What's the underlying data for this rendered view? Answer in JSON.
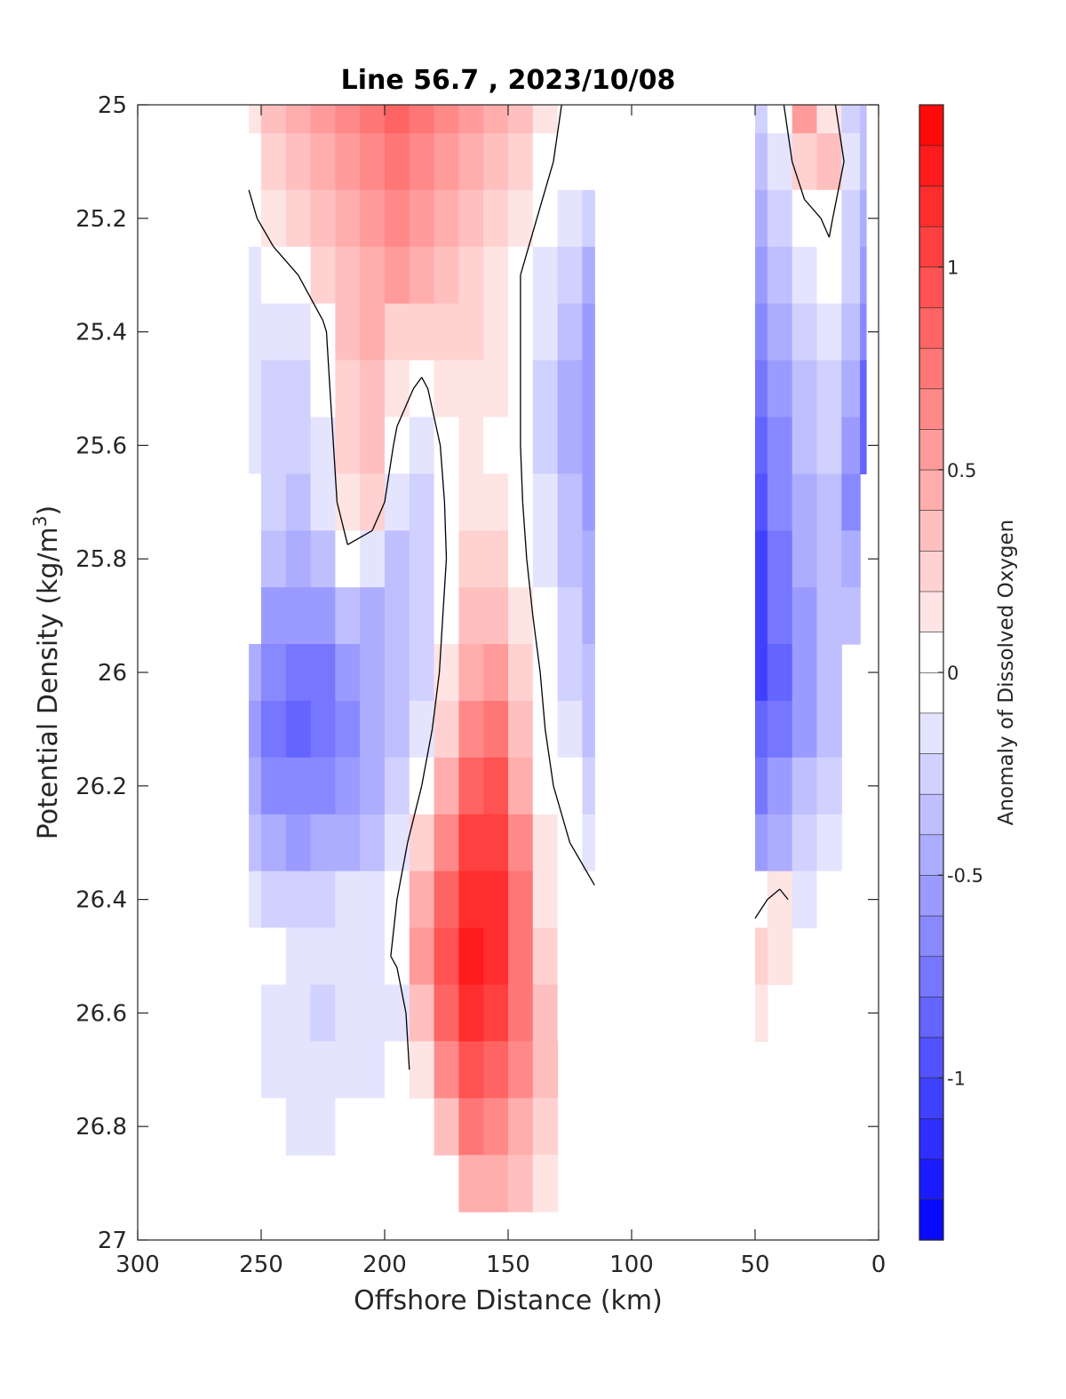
{
  "chart_data": {
    "type": "heatmap",
    "title": "Line 56.7 , 2023/10/08",
    "xlabel": "Offshore Distance (km)",
    "ylabel": "Potential Density (kg/m³)",
    "ylabel_parts": {
      "main": "Potential Density (kg/m",
      "superscript": "3",
      "suffix": ")"
    },
    "colorbar_label": "Anomaly of Dissolved Oxygen",
    "xlim": [
      300,
      0
    ],
    "ylim": [
      25,
      27
    ],
    "x_reversed": true,
    "y_reversed": true,
    "x_ticks": [
      300,
      250,
      200,
      150,
      100,
      50,
      0
    ],
    "x_tick_labels": [
      "300",
      "250",
      "200",
      "150",
      "100",
      "50",
      "0"
    ],
    "y_ticks": [
      25,
      25.2,
      25.4,
      25.6,
      25.8,
      26,
      26.2,
      26.4,
      26.6,
      26.8,
      27
    ],
    "y_tick_labels": [
      "25",
      "25.2",
      "25.4",
      "25.6",
      "25.8",
      "26",
      "26.2",
      "26.4",
      "26.6",
      "26.8",
      "27"
    ],
    "colorbar": {
      "range": [
        -1.4,
        1.4
      ],
      "step": 0.1,
      "ticks": [
        1,
        0.5,
        0,
        -0.5,
        -1
      ],
      "tick_labels": [
        "1",
        "0.5",
        "0",
        "-0.5",
        "-1"
      ],
      "positive_color": "#ff0000",
      "negative_color": "#0000ff",
      "neutral_color": "#ffffff"
    },
    "contour_levels": [
      0
    ],
    "field": {
      "description": "Dissolved oxygen anomaly sampled on offshore distance (km) vs potential density grid",
      "x": [
        255,
        245,
        235,
        225,
        215,
        205,
        195,
        185,
        175,
        165,
        155,
        145,
        135,
        125,
        115,
        50,
        40,
        30,
        20,
        10,
        5
      ],
      "y": [
        25.0,
        25.1,
        25.2,
        25.3,
        25.4,
        25.5,
        25.6,
        25.7,
        25.8,
        25.9,
        26.0,
        26.1,
        26.2,
        26.3,
        26.4,
        26.5,
        26.6,
        26.7,
        26.8,
        26.9
      ],
      "values": [
        [
          0.15,
          0.3,
          0.4,
          0.5,
          0.6,
          0.7,
          0.8,
          0.7,
          0.6,
          0.5,
          0.4,
          0.3,
          0.1,
          -0.05,
          null,
          -0.3,
          -0.1,
          0.5,
          0.1,
          -0.3,
          -0.4
        ],
        [
          0.05,
          0.2,
          0.3,
          0.45,
          0.55,
          0.65,
          0.7,
          0.65,
          0.55,
          0.45,
          0.35,
          0.2,
          0.05,
          -0.1,
          -0.1,
          -0.4,
          -0.2,
          0.2,
          0.3,
          -0.2,
          -0.4
        ],
        [
          -0.05,
          0.1,
          0.2,
          0.35,
          0.45,
          0.55,
          0.6,
          0.55,
          0.45,
          0.35,
          0.25,
          0.1,
          -0.05,
          -0.2,
          -0.3,
          -0.5,
          -0.3,
          -0.1,
          0.05,
          -0.3,
          -0.5
        ],
        [
          -0.15,
          -0.1,
          0.0,
          0.2,
          0.35,
          0.45,
          0.5,
          0.45,
          0.35,
          0.25,
          0.15,
          0.0,
          -0.15,
          -0.3,
          -0.45,
          -0.6,
          -0.4,
          -0.2,
          -0.1,
          -0.3,
          -0.6
        ],
        [
          -0.2,
          -0.2,
          -0.15,
          -0.05,
          0.3,
          0.4,
          0.25,
          0.2,
          0.25,
          0.2,
          0.1,
          0.0,
          -0.2,
          -0.4,
          -0.55,
          -0.7,
          -0.5,
          -0.3,
          -0.2,
          -0.4,
          -0.7
        ],
        [
          -0.2,
          -0.25,
          -0.3,
          -0.1,
          0.25,
          0.35,
          0.1,
          -0.05,
          0.15,
          0.15,
          0.1,
          0.0,
          -0.25,
          -0.45,
          -0.6,
          -0.8,
          -0.6,
          -0.35,
          -0.25,
          -0.5,
          -0.9
        ],
        [
          -0.15,
          -0.25,
          -0.3,
          -0.15,
          0.2,
          0.3,
          -0.05,
          -0.15,
          0.05,
          0.1,
          0.08,
          0.0,
          -0.25,
          -0.45,
          -0.6,
          -0.9,
          -0.65,
          -0.4,
          -0.3,
          -0.6,
          -0.9
        ],
        [
          -0.05,
          -0.3,
          -0.35,
          -0.2,
          0.15,
          0.2,
          -0.2,
          -0.25,
          0.02,
          0.12,
          0.1,
          0.02,
          -0.2,
          -0.4,
          -0.55,
          -1.0,
          -0.7,
          -0.45,
          -0.35,
          -0.7,
          null
        ],
        [
          -0.05,
          -0.4,
          -0.45,
          -0.35,
          -0.05,
          -0.2,
          -0.35,
          -0.3,
          0.0,
          0.2,
          0.2,
          0.05,
          -0.15,
          -0.35,
          -0.5,
          -1.05,
          -0.75,
          -0.5,
          -0.4,
          -0.5,
          null
        ],
        [
          -0.1,
          -0.55,
          -0.6,
          -0.55,
          -0.4,
          -0.45,
          -0.4,
          -0.3,
          0.05,
          0.3,
          0.35,
          0.1,
          -0.1,
          -0.3,
          -0.45,
          -1.1,
          -0.8,
          -0.55,
          -0.4,
          -0.4,
          null
        ],
        [
          -0.5,
          -0.7,
          -0.8,
          -0.75,
          -0.6,
          -0.5,
          -0.4,
          -0.25,
          0.1,
          0.45,
          0.5,
          0.2,
          -0.05,
          -0.25,
          -0.4,
          -1.05,
          -0.85,
          -0.6,
          -0.4,
          null,
          null
        ],
        [
          -0.55,
          -0.75,
          -0.85,
          -0.8,
          -0.65,
          -0.5,
          -0.35,
          -0.15,
          0.2,
          0.6,
          0.7,
          0.3,
          0.0,
          -0.2,
          -0.35,
          -0.9,
          -0.8,
          -0.55,
          -0.35,
          null,
          null
        ],
        [
          -0.45,
          -0.65,
          -0.7,
          -0.65,
          -0.55,
          -0.45,
          -0.25,
          0.0,
          0.4,
          0.8,
          0.9,
          0.45,
          0.05,
          -0.1,
          -0.25,
          -0.75,
          -0.6,
          -0.4,
          -0.25,
          null,
          null
        ],
        [
          -0.35,
          -0.5,
          -0.55,
          -0.5,
          -0.45,
          -0.35,
          -0.15,
          0.2,
          0.65,
          1.0,
          1.0,
          0.6,
          0.1,
          0.0,
          -0.15,
          -0.55,
          -0.45,
          -0.3,
          -0.2,
          null,
          null
        ],
        [
          -0.2,
          -0.25,
          -0.3,
          -0.25,
          -0.2,
          -0.15,
          0.0,
          0.4,
          0.8,
          1.15,
          1.1,
          0.7,
          0.15,
          0.05,
          0.05,
          -0.1,
          0.1,
          -0.2,
          -0.1,
          null,
          null
        ],
        [
          -0.1,
          -0.1,
          -0.15,
          -0.2,
          -0.2,
          -0.15,
          0.05,
          0.5,
          0.9,
          1.2,
          1.15,
          0.75,
          0.2,
          0.0,
          null,
          0.2,
          0.15,
          null,
          null,
          null,
          null
        ],
        [
          -0.1,
          -0.15,
          -0.2,
          -0.3,
          -0.2,
          -0.2,
          -0.2,
          0.35,
          0.85,
          1.1,
          1.05,
          0.7,
          0.3,
          0.05,
          null,
          0.1,
          null,
          null,
          null,
          null,
          null
        ],
        [
          -0.05,
          -0.15,
          -0.2,
          -0.2,
          -0.15,
          -0.15,
          -0.1,
          0.1,
          0.6,
          0.9,
          0.85,
          0.6,
          0.3,
          null,
          null,
          null,
          null,
          null,
          null,
          null,
          null
        ],
        [
          -0.05,
          -0.1,
          -0.15,
          -0.15,
          -0.1,
          -0.1,
          -0.05,
          null,
          0.35,
          0.7,
          0.65,
          0.45,
          0.2,
          null,
          null,
          null,
          null,
          null,
          null,
          null,
          null
        ],
        [
          null,
          null,
          null,
          null,
          null,
          null,
          null,
          null,
          null,
          0.4,
          0.4,
          0.3,
          0.15,
          null,
          null,
          null,
          null,
          null,
          null,
          null,
          null
        ]
      ]
    }
  }
}
